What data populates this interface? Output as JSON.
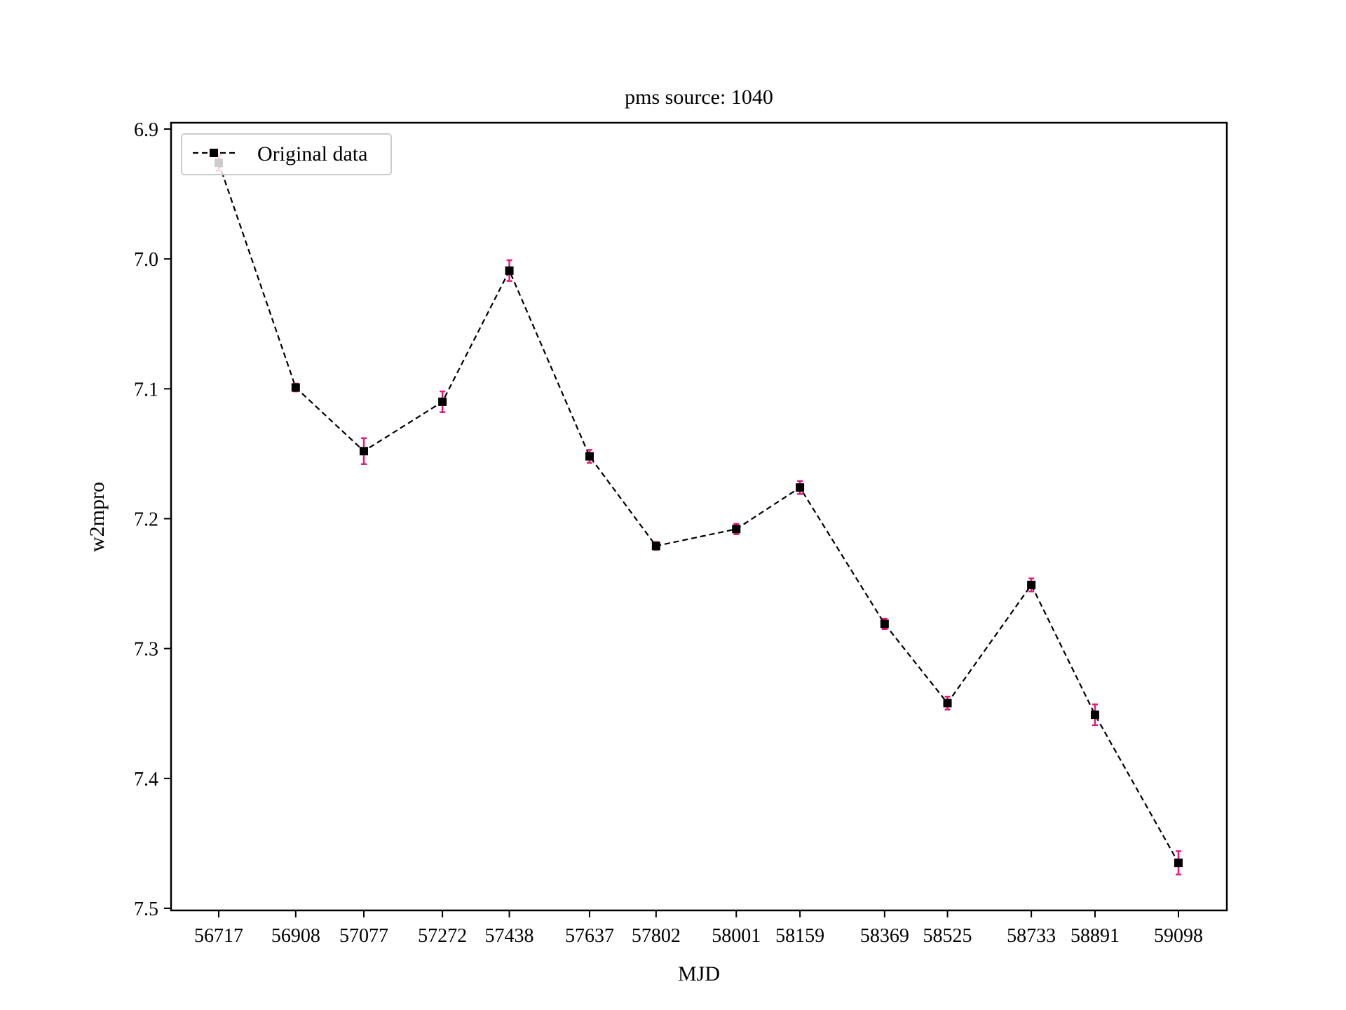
{
  "chart_data": {
    "type": "line",
    "title": "pms source: 1040",
    "xlabel": "MJD",
    "ylabel": "w2mpro",
    "x": [
      56717,
      56908,
      57077,
      57272,
      57438,
      57637,
      57802,
      58001,
      58159,
      58369,
      58525,
      58733,
      58891,
      59098
    ],
    "x_tick_labels": [
      "56717",
      "56908",
      "57077",
      "57272",
      "57438",
      "57637",
      "57802",
      "58001",
      "58159",
      "58369",
      "58525",
      "58733",
      "58891",
      "59098"
    ],
    "ylim": [
      6.9,
      7.5
    ],
    "y_inverted": true,
    "y_ticks": [
      6.9,
      7.0,
      7.1,
      7.2,
      7.3,
      7.4,
      7.5
    ],
    "y_tick_labels": [
      "6.9",
      "7.0",
      "7.1",
      "7.2",
      "7.3",
      "7.4",
      "7.5"
    ],
    "grid": false,
    "legend_position": "top-left",
    "series": [
      {
        "name": "Original data",
        "line_style": "dashed",
        "marker": "square",
        "color": "#000000",
        "error_color": "#e8197d",
        "y": [
          6.926,
          7.099,
          7.148,
          7.11,
          7.009,
          7.152,
          7.221,
          7.208,
          7.176,
          7.281,
          7.342,
          7.251,
          7.351,
          7.465
        ],
        "yerr": [
          0.006,
          0.003,
          0.01,
          0.008,
          0.008,
          0.005,
          0.003,
          0.004,
          0.005,
          0.004,
          0.005,
          0.005,
          0.008,
          0.009
        ]
      }
    ]
  }
}
